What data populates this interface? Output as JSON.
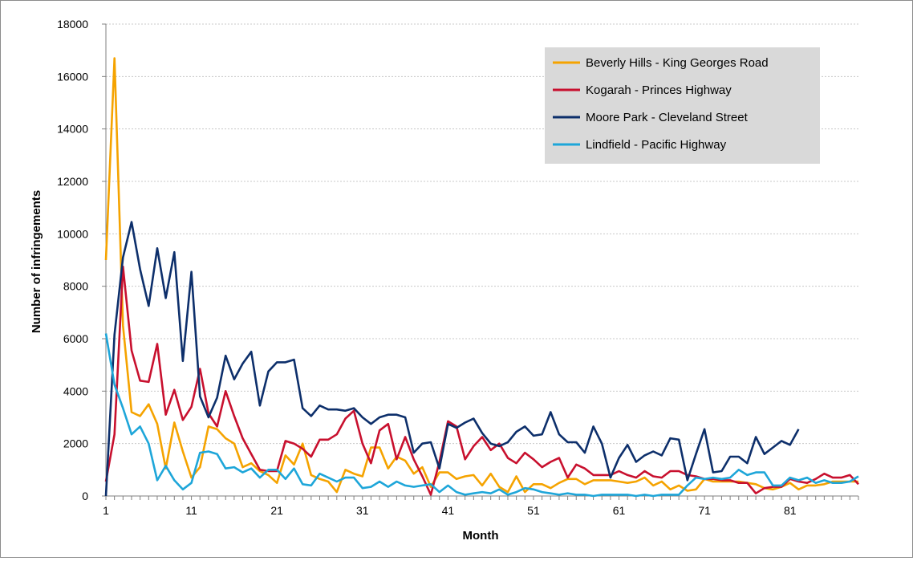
{
  "chart_data": {
    "type": "line",
    "xlabel": "Month",
    "ylabel": "Number of infringements",
    "ylim": [
      0,
      18000
    ],
    "yticks": [
      0,
      2000,
      4000,
      6000,
      8000,
      10000,
      12000,
      14000,
      16000,
      18000
    ],
    "xticks": [
      1,
      11,
      21,
      31,
      41,
      51,
      61,
      71,
      81
    ],
    "xlim": [
      1,
      89
    ],
    "grid": "horizontal",
    "legend_position": "top-right",
    "series": [
      {
        "name": "Beverly Hills - King Georges Road",
        "color": "#f5a300",
        "x": [
          1,
          2,
          3,
          4,
          5,
          6,
          7,
          8,
          9,
          10,
          11,
          12,
          13,
          14,
          15,
          16,
          17,
          18,
          19,
          20,
          21,
          22,
          23,
          24,
          25,
          26,
          27,
          28,
          29,
          30,
          31,
          32,
          33,
          34,
          35,
          36,
          37,
          38,
          39,
          40,
          41,
          42,
          43,
          44,
          45,
          46,
          47,
          48,
          49,
          50,
          51,
          52,
          53,
          54,
          55,
          56,
          57,
          58,
          59,
          60,
          61,
          62,
          63,
          64,
          65,
          66,
          67,
          68,
          69,
          70,
          71,
          72,
          73,
          74,
          75,
          76,
          77,
          78,
          79,
          80,
          81,
          82,
          83,
          84,
          85,
          86,
          87,
          88,
          89
        ],
        "values": [
          9000,
          16700,
          6500,
          3200,
          3050,
          3500,
          2750,
          1050,
          2800,
          1700,
          700,
          1100,
          2650,
          2550,
          2200,
          2000,
          1100,
          1250,
          950,
          800,
          500,
          1550,
          1200,
          2000,
          800,
          650,
          550,
          150,
          1000,
          850,
          750,
          1850,
          1850,
          1050,
          1500,
          1350,
          850,
          1100,
          350,
          900,
          900,
          650,
          750,
          800,
          400,
          850,
          350,
          150,
          750,
          150,
          450,
          450,
          300,
          500,
          650,
          650,
          450,
          600,
          600,
          600,
          550,
          500,
          550,
          700,
          400,
          550,
          250,
          400,
          200,
          250,
          650,
          550,
          550,
          550,
          550,
          500,
          450,
          300,
          250,
          350,
          500,
          250,
          400,
          400,
          450,
          550,
          550,
          550,
          550
        ]
      },
      {
        "name": "Kogarah - Princes Highway",
        "color": "#c8102e",
        "x": [
          1,
          2,
          3,
          4,
          5,
          6,
          7,
          8,
          9,
          10,
          11,
          12,
          13,
          14,
          15,
          16,
          17,
          18,
          19,
          20,
          21,
          22,
          23,
          24,
          25,
          26,
          27,
          28,
          29,
          30,
          31,
          32,
          33,
          34,
          35,
          36,
          37,
          38,
          39,
          40,
          41,
          42,
          43,
          44,
          45,
          46,
          47,
          48,
          49,
          50,
          51,
          52,
          53,
          54,
          55,
          56,
          57,
          58,
          59,
          60,
          61,
          62,
          63,
          64,
          65,
          66,
          67,
          68,
          69,
          70,
          71,
          72,
          73,
          74,
          75,
          76,
          77,
          78,
          79,
          80,
          81,
          82,
          83,
          84,
          85,
          86,
          87,
          88,
          89
        ],
        "values": [
          550,
          2350,
          8750,
          5550,
          4400,
          4350,
          5800,
          3100,
          4050,
          2900,
          3400,
          4850,
          3150,
          2650,
          4000,
          3050,
          2200,
          1600,
          1000,
          950,
          950,
          2100,
          2000,
          1800,
          1500,
          2150,
          2150,
          2350,
          2950,
          3250,
          2000,
          1250,
          2500,
          2750,
          1400,
          2250,
          1400,
          750,
          50,
          1300,
          2850,
          2650,
          1400,
          1900,
          2250,
          1750,
          2000,
          1450,
          1250,
          1650,
          1400,
          1100,
          1300,
          1450,
          700,
          1200,
          1050,
          800,
          800,
          800,
          950,
          800,
          700,
          950,
          750,
          700,
          950,
          950,
          800,
          750,
          650,
          650,
          600,
          600,
          500,
          500,
          100,
          300,
          350,
          350,
          650,
          550,
          500,
          650,
          850,
          700,
          700,
          800,
          450
        ]
      },
      {
        "name": "Moore Park - Cleveland Street",
        "color": "#0d2f6b",
        "x": [
          1,
          2,
          3,
          4,
          5,
          6,
          7,
          8,
          9,
          10,
          11,
          12,
          13,
          14,
          15,
          16,
          17,
          18,
          19,
          20,
          21,
          22,
          23,
          24,
          25,
          26,
          27,
          28,
          29,
          30,
          31,
          32,
          33,
          34,
          35,
          36,
          37,
          38,
          39,
          40,
          41,
          42,
          43,
          44,
          45,
          46,
          47,
          48,
          49,
          50,
          51,
          52,
          53,
          54,
          55,
          56,
          57,
          58,
          59,
          60,
          61,
          62,
          63,
          64,
          65,
          66,
          67,
          68,
          69,
          70,
          71,
          72,
          73,
          74,
          75,
          76,
          77,
          78,
          79,
          80,
          81,
          82
        ],
        "values": [
          0,
          6150,
          9100,
          10450,
          8650,
          7250,
          9450,
          7550,
          9300,
          5150,
          8550,
          3800,
          3000,
          3750,
          5350,
          4450,
          5050,
          5500,
          3450,
          4750,
          5100,
          5100,
          5200,
          3350,
          3050,
          3450,
          3300,
          3300,
          3250,
          3350,
          3000,
          2750,
          3000,
          3100,
          3100,
          3000,
          1650,
          2000,
          2050,
          1050,
          2750,
          2600,
          2800,
          2950,
          2400,
          2000,
          1900,
          2050,
          2450,
          2650,
          2300,
          2350,
          3200,
          2350,
          2050,
          2050,
          1650,
          2650,
          2000,
          700,
          1450,
          1950,
          1300,
          1550,
          1700,
          1550,
          2200,
          2150,
          600,
          1600,
          2550,
          900,
          950,
          1500,
          1500,
          1250,
          2250,
          1600,
          1850,
          2100,
          1950,
          2550
        ]
      },
      {
        "name": "Lindfield - Pacific Highway",
        "color": "#1ea6d9",
        "x": [
          1,
          2,
          3,
          4,
          5,
          6,
          7,
          8,
          9,
          10,
          11,
          12,
          13,
          14,
          15,
          16,
          17,
          18,
          19,
          20,
          21,
          22,
          23,
          24,
          25,
          26,
          27,
          28,
          29,
          30,
          31,
          32,
          33,
          34,
          35,
          36,
          37,
          38,
          39,
          40,
          41,
          42,
          43,
          44,
          45,
          46,
          47,
          48,
          49,
          50,
          51,
          52,
          53,
          54,
          55,
          56,
          57,
          58,
          59,
          60,
          61,
          62,
          63,
          64,
          65,
          66,
          67,
          68,
          69,
          70,
          71,
          72,
          73,
          74,
          75,
          76,
          77,
          78,
          79,
          80,
          81,
          82,
          83,
          84,
          85,
          86,
          87,
          88,
          89
        ],
        "values": [
          6200,
          4250,
          3350,
          2350,
          2650,
          2000,
          600,
          1150,
          600,
          250,
          500,
          1650,
          1700,
          1600,
          1050,
          1100,
          900,
          1050,
          700,
          1000,
          1000,
          650,
          1050,
          450,
          400,
          850,
          700,
          550,
          700,
          700,
          300,
          350,
          550,
          350,
          550,
          400,
          350,
          400,
          450,
          150,
          400,
          150,
          50,
          100,
          150,
          100,
          250,
          50,
          150,
          300,
          250,
          150,
          100,
          50,
          100,
          50,
          50,
          0,
          50,
          50,
          50,
          50,
          0,
          50,
          0,
          50,
          50,
          50,
          400,
          700,
          650,
          700,
          650,
          700,
          1000,
          800,
          900,
          900,
          400,
          400,
          700,
          600,
          700,
          500,
          600,
          500,
          500,
          550,
          750
        ]
      }
    ]
  }
}
